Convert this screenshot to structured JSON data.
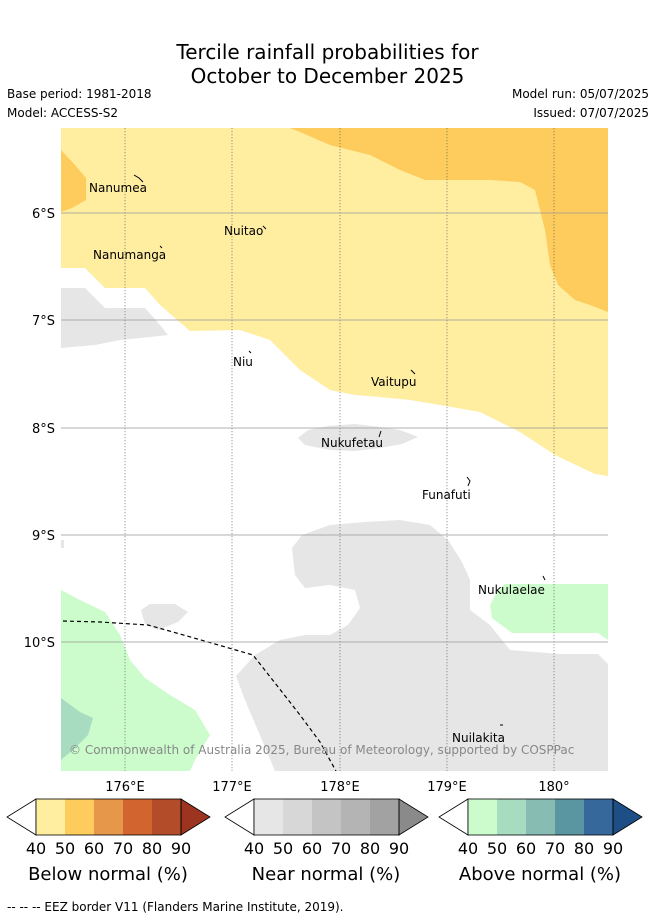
{
  "title_line1": "Tercile rainfall probabilities for",
  "title_line2": "October to December 2025",
  "base_period": "Base period: 1981-2018",
  "model": "Model: ACCESS-S2",
  "model_run": "Model run: 05/07/2025",
  "issued": "Issued: 07/07/2025",
  "lat_labels": [
    "6°S",
    "7°S",
    "8°S",
    "9°S",
    "10°S"
  ],
  "lon_labels": [
    "176°E",
    "177°E",
    "178°E",
    "179°E",
    "180°"
  ],
  "places": [
    "Nanumea",
    "Nuitao",
    "Nanumanga",
    "Niu",
    "Vaitupu",
    "Nukufetau",
    "Funafuti",
    "Nukulaelae",
    "Nuilakita"
  ],
  "credit": "© Commonwealth of Australia 2025, Bureau of Meteorology, supported by COSPPac",
  "colorbars": [
    {
      "title": "Below normal (%)",
      "ticks": [
        "40",
        "50",
        "60",
        "70",
        "80",
        "90"
      ],
      "colors": [
        "#ffffff",
        "#ffeda0",
        "#fecc5c",
        "#e6974a",
        "#d1642f",
        "#b34c28",
        "#9c3420"
      ]
    },
    {
      "title": "Near normal (%)",
      "ticks": [
        "40",
        "50",
        "60",
        "70",
        "80",
        "90"
      ],
      "colors": [
        "#ffffff",
        "#e6e6e6",
        "#d7d7d7",
        "#c4c4c4",
        "#b4b4b4",
        "#a2a2a2",
        "#8a8a8a"
      ]
    },
    {
      "title": "Above normal (%)",
      "ticks": [
        "40",
        "50",
        "60",
        "70",
        "80",
        "90"
      ],
      "colors": [
        "#ffffff",
        "#ccfccc",
        "#a8dcc0",
        "#86bcb2",
        "#5a96a2",
        "#36689c",
        "#1d4f86"
      ]
    }
  ],
  "legend": {
    "below_normal_colors": [
      "#ffeda0",
      "#fecc5c"
    ],
    "near_normal_color": "#e6e6e6",
    "above_normal_colors": [
      "#ccfccc",
      "#a8dcc0"
    ]
  },
  "footer": "-- -- -- EEZ border V11 (Flanders Marine Institute, 2019)."
}
